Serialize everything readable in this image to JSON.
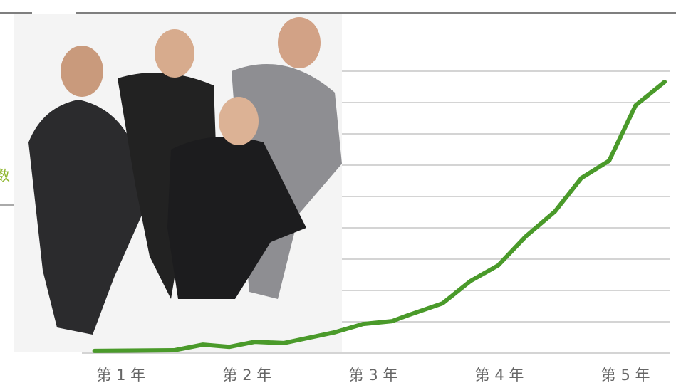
{
  "chart_data": {
    "type": "line",
    "y_label": "数",
    "xlim": [
      0.6,
      5.4
    ],
    "xticks": [
      {
        "value": 1,
        "label": "第 1 年"
      },
      {
        "value": 2,
        "label": "第 2 年"
      },
      {
        "value": 3,
        "label": "第 3 年"
      },
      {
        "value": 4,
        "label": "第 4 年"
      },
      {
        "value": 5,
        "label": "第 5 年"
      }
    ],
    "ylim": [
      0,
      9
    ],
    "yticks": [
      0,
      1,
      2,
      3,
      4,
      5,
      6,
      7,
      8,
      9
    ],
    "grid": true,
    "series": [
      {
        "color": "#4a9a2a",
        "x": [
          0.79,
          1.42,
          1.65,
          1.86,
          2.06,
          2.29,
          2.69,
          2.92,
          3.15,
          3.27,
          3.55,
          3.77,
          3.99,
          4.21,
          4.44,
          4.65,
          4.87,
          5.08,
          5.31
        ],
        "values": [
          0.07,
          0.09,
          0.27,
          0.2,
          0.36,
          0.32,
          0.66,
          0.93,
          1.02,
          1.2,
          1.59,
          2.3,
          2.8,
          3.73,
          4.52,
          5.59,
          6.14,
          7.91,
          8.66
        ]
      }
    ]
  }
}
